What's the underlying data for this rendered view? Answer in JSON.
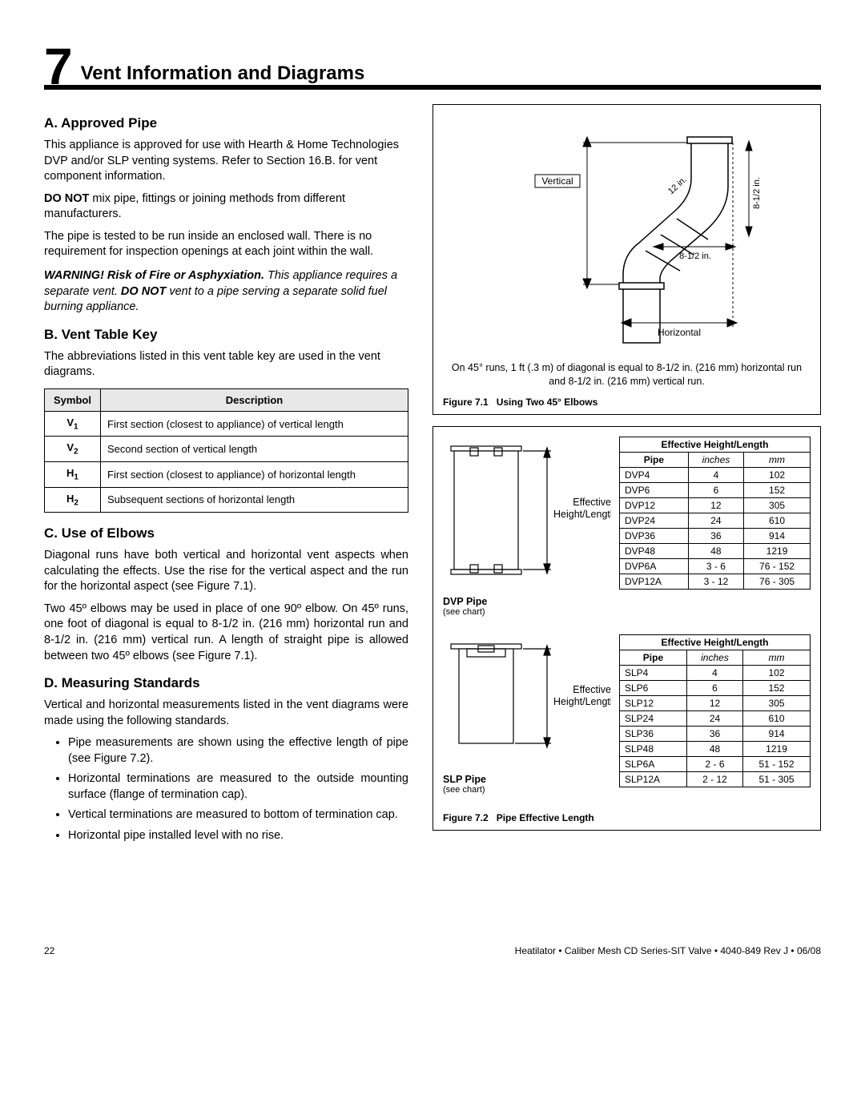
{
  "chapter": {
    "num": "7",
    "title": "Vent Information and Diagrams"
  },
  "secA": {
    "heading": "A. Approved Pipe",
    "p1": "This appliance is approved for use with Hearth & Home Technologies DVP and/or SLP venting systems.  Refer to Section 16.B. for vent component information.",
    "p2a": "DO NOT",
    "p2b": " mix pipe, fittings or joining methods from different manufacturers.",
    "p3": "The pipe is tested to be run inside an enclosed wall. There is no requirement for inspection openings at each joint within the wall.",
    "warn_lead": "WARNING! Risk of Fire or Asphyxiation.",
    "warn_body1": " This appliance requires a separate vent. ",
    "warn_bold": "DO NOT",
    "warn_body2": " vent to a pipe serving a separate solid fuel burning appliance."
  },
  "secB": {
    "heading": "B. Vent Table Key",
    "p1": "The abbreviations listed in this vent table key are used in the vent diagrams.",
    "th1": "Symbol",
    "th2": "Description",
    "rows": [
      {
        "s": "V",
        "sub": "1",
        "d": "First section (closest to appliance) of vertical length"
      },
      {
        "s": "V",
        "sub": "2",
        "d": "Second section of vertical length"
      },
      {
        "s": "H",
        "sub": "1",
        "d": "First section (closest to appliance) of horizontal length"
      },
      {
        "s": "H",
        "sub": "2",
        "d": "Subsequent sections of horizontal length"
      }
    ]
  },
  "secC": {
    "heading": "C. Use of Elbows",
    "p1": "Diagonal runs have both vertical and horizontal vent aspects when calculating the effects. Use the rise for the vertical aspect and the run for the horizontal aspect (see Figure 7.1).",
    "p2": "Two 45º elbows may be used in place of one 90º elbow. On 45º runs, one foot of diagonal is equal to 8-1/2 in. (216 mm) horizontal run and 8-1/2 in. (216 mm) vertical run. A length of straight pipe is allowed between two 45º elbows (see Figure 7.1)."
  },
  "secD": {
    "heading": "D. Measuring Standards",
    "p1": "Vertical and horizontal measurements listed in the vent diagrams were made using the following standards.",
    "bullets": [
      "Pipe measurements are shown using the effective length of pipe (see Figure 7.2).",
      "Horizontal terminations are measured to the outside mounting surface (flange of termination cap).",
      "Vertical terminations are measured to bottom of termination cap.",
      "Horizontal pipe installed level with no rise."
    ]
  },
  "fig71": {
    "label": "Figure 7.1",
    "title": "Using Two 45° Elbows",
    "note": "On 45° runs, 1 ft (.3 m) of diagonal is equal to 8-1/2 in. (216 mm) horizontal run and 8-1/2 in. (216 mm) vertical run.",
    "vertical": "Vertical",
    "horizontal": "Horizontal",
    "dim1": "12 in.",
    "dim2": "8-1/2 in.",
    "dim3": "8-1/2 in."
  },
  "fig72": {
    "label": "Figure 7.2",
    "title": "Pipe Effective Length",
    "eff_label": "Effective Height/Length",
    "dvp_name": "DVP Pipe",
    "slp_name": "SLP Pipe",
    "see_chart": "(see chart)",
    "header_title": "Effective Height/Length",
    "col_pipe": "Pipe",
    "col_in": "inches",
    "col_mm": "mm",
    "dvp_rows": [
      {
        "p": "DVP4",
        "in": "4",
        "mm": "102"
      },
      {
        "p": "DVP6",
        "in": "6",
        "mm": "152"
      },
      {
        "p": "DVP12",
        "in": "12",
        "mm": "305"
      },
      {
        "p": "DVP24",
        "in": "24",
        "mm": "610"
      },
      {
        "p": "DVP36",
        "in": "36",
        "mm": "914"
      },
      {
        "p": "DVP48",
        "in": "48",
        "mm": "1219"
      },
      {
        "p": "DVP6A",
        "in": "3 - 6",
        "mm": "76 - 152"
      },
      {
        "p": "DVP12A",
        "in": "3 - 12",
        "mm": "76 - 305"
      }
    ],
    "slp_rows": [
      {
        "p": "SLP4",
        "in": "4",
        "mm": "102"
      },
      {
        "p": "SLP6",
        "in": "6",
        "mm": "152"
      },
      {
        "p": "SLP12",
        "in": "12",
        "mm": "305"
      },
      {
        "p": "SLP24",
        "in": "24",
        "mm": "610"
      },
      {
        "p": "SLP36",
        "in": "36",
        "mm": "914"
      },
      {
        "p": "SLP48",
        "in": "48",
        "mm": "1219"
      },
      {
        "p": "SLP6A",
        "in": "2 - 6",
        "mm": "51 - 152"
      },
      {
        "p": "SLP12A",
        "in": "2 - 12",
        "mm": "51 - 305"
      }
    ]
  },
  "footer": {
    "page": "22",
    "line": "Heatilator • Caliber Mesh CD Series-SIT Valve • 4040-849 Rev J • 06/08"
  },
  "style": {
    "border_color": "#000000",
    "header_bg": "#e8e8e8",
    "body_fontsize": 14.5,
    "table_fontsize": 12
  }
}
